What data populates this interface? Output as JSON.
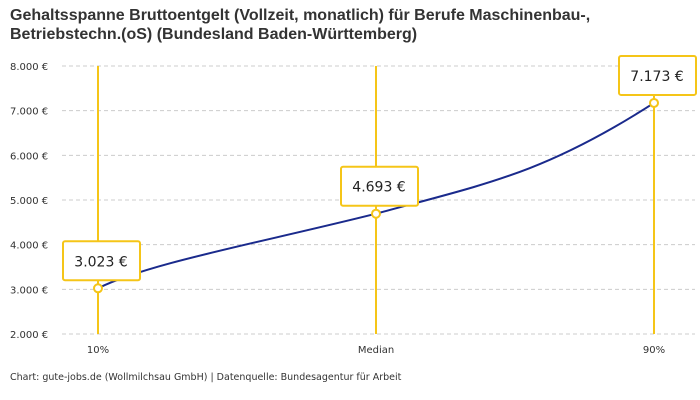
{
  "chart_data": {
    "type": "line",
    "title": [
      "Gehaltsspanne Bruttoentgelt (Vollzeit, monatlich) für Berufe Maschinenbau-,",
      "Betriebstechn.(oS) (Bundesland Baden-Württemberg)"
    ],
    "categories": [
      "10%",
      "Median",
      "90%"
    ],
    "values": [
      3023,
      4693,
      7173
    ],
    "value_labels": [
      "3.023 €",
      "4.693 €",
      "7.173 €"
    ],
    "ylim": [
      2000,
      8000
    ],
    "yticks": [
      2000,
      3000,
      4000,
      5000,
      6000,
      7000,
      8000
    ],
    "ytick_labels": [
      "2.000 €",
      "3.000 €",
      "4.000 €",
      "5.000 €",
      "6.000 €",
      "7.000 €",
      "8.000 €"
    ],
    "grid": true,
    "source": "Chart: gute-jobs.de (Wollmilchsau GmbH) | Datenquelle: Bundesagentur für Arbeit",
    "colors": {
      "line": "#1a2a8c",
      "marker": "#f5c518",
      "grid": "#cccccc"
    }
  }
}
